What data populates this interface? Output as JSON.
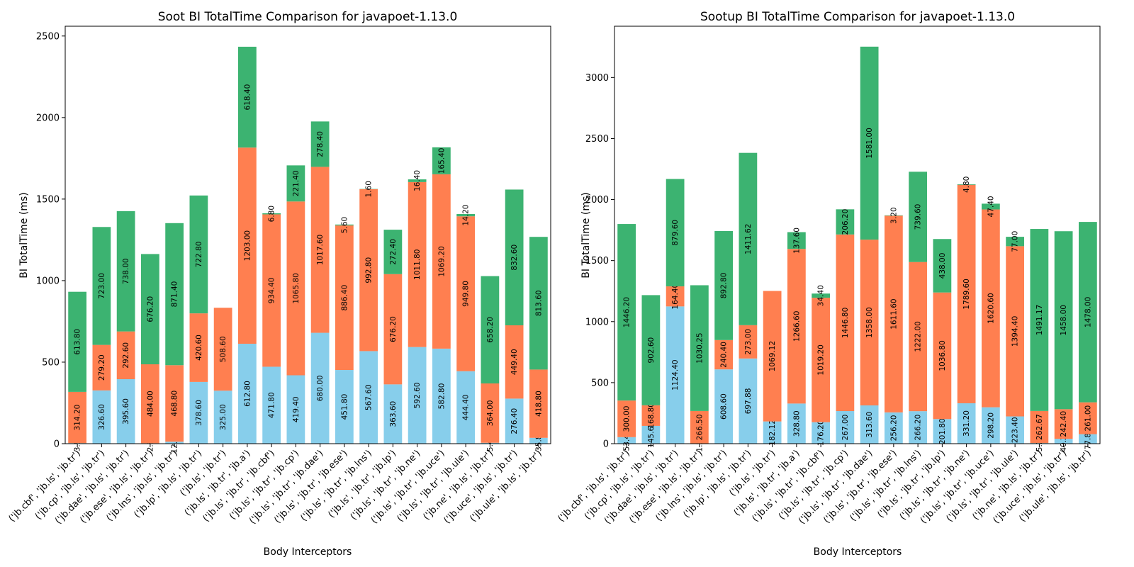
{
  "colors": {
    "series_1": "#87CEEB",
    "series_2": "#FF7F50",
    "series_3": "#3CB371",
    "axis": "#000000",
    "background": "#ffffff"
  },
  "chart_data": [
    {
      "type": "bar",
      "stacked": true,
      "title": "Soot BI TotalTime Comparison for javapoet-1.13.0",
      "xlabel": "Body Interceptors",
      "ylabel": "BI TotalTime (ms)",
      "ylim": [
        0,
        2560
      ],
      "yticks": [
        0,
        500,
        1000,
        1500,
        2000,
        2500
      ],
      "grid": false,
      "categories": [
        "('jb.cbf', 'jb.ls', 'jb.tr')",
        "('jb.cp', 'jb.ls', 'jb.tr')",
        "('jb.dae', 'jb.ls', 'jb.tr')",
        "('jb.ese', 'jb.ls', 'jb.tr')",
        "('jb.lns', 'jb.ls', 'jb.tr')",
        "('jb.lp', 'jb.ls', 'jb.tr')",
        "('jb.ls', 'jb.tr')",
        "('jb.ls', 'jb.tr', 'jb.a')",
        "('jb.ls', 'jb.tr', 'jb.cbf')",
        "('jb.ls', 'jb.tr', 'jb.cp')",
        "('jb.ls', 'jb.tr', 'jb.dae')",
        "('jb.ls', 'jb.tr', 'jb.ese')",
        "('jb.ls', 'jb.tr', 'jb.lns')",
        "('jb.ls', 'jb.tr', 'jb.lp')",
        "('jb.ls', 'jb.tr', 'jb.ne')",
        "('jb.ls', 'jb.tr', 'jb.uce')",
        "('jb.ls', 'jb.tr', 'jb.ule')",
        "('jb.ne', 'jb.ls', 'jb.tr')",
        "('jb.uce', 'jb.ls', 'jb.tr')",
        "('jb.ule', 'jb.ls', 'jb.tr')"
      ],
      "series": [
        {
          "values": [
            3.5,
            326.6,
            395.6,
            2.8,
            12.4,
            378.6,
            325.0,
            612.8,
            471.8,
            419.4,
            680.0,
            451.8,
            567.6,
            363.6,
            592.6,
            582.8,
            444.4,
            5.4,
            276.4,
            35.8
          ]
        },
        {
          "values": [
            314.2,
            279.2,
            292.6,
            484.0,
            468.8,
            420.6,
            508.6,
            1203.0,
            934.4,
            1065.8,
            1017.6,
            886.4,
            992.8,
            676.2,
            1011.8,
            1069.2,
            949.8,
            364.0,
            449.4,
            418.8
          ]
        },
        {
          "values": [
            613.8,
            723.0,
            738.0,
            676.2,
            871.4,
            722.8,
            0,
            618.4,
            6.8,
            221.4,
            278.4,
            5.6,
            1.6,
            272.4,
            16.4,
            165.4,
            14.2,
            658.2,
            832.6,
            813.6
          ]
        }
      ],
      "data_labels": [
        [
          "3.50",
          "326.60",
          "395.60",
          "2.80",
          "12.40",
          "378.60",
          "325.00",
          "612.80",
          "471.80",
          "419.40",
          "680.00",
          "451.80",
          "567.60",
          "363.60",
          "592.60",
          "582.80",
          "444.40",
          "5.40",
          "276.40",
          "35.80"
        ],
        [
          "314.20",
          "279.20",
          "292.60",
          "484.00",
          "468.80",
          "420.60",
          "508.60",
          "1203.00",
          "934.40",
          "1065.80",
          "1017.60",
          "886.40",
          "992.80",
          "676.20",
          "1011.80",
          "1069.20",
          "949.80",
          "364.00",
          "449.40",
          "418.80"
        ],
        [
          "613.80",
          "723.00",
          "738.00",
          "676.20",
          "871.40",
          "722.80",
          "",
          "618.40",
          "6.80",
          "221.40",
          "278.40",
          "5.60",
          "1.60",
          "272.40",
          "16.40",
          "165.40",
          "14.20",
          "658.20",
          "832.60",
          "813.60"
        ]
      ]
    },
    {
      "type": "bar",
      "stacked": true,
      "title": "Sootup BI TotalTime Comparison for javapoet-1.13.0",
      "xlabel": "Body Interceptors",
      "ylabel": "BI TotalTime (ms)",
      "ylim": [
        0,
        3420
      ],
      "yticks": [
        0,
        500,
        1000,
        1500,
        2000,
        2500,
        3000
      ],
      "grid": false,
      "categories": [
        "('jb.cbf', 'jb.ls', 'jb.tr')",
        "('jb.cp', 'jb.ls', 'jb.tr')",
        "('jb.dae', 'jb.ls', 'jb.tr')",
        "('jb.ese', 'jb.ls', 'jb.tr')",
        "('jb.lns', 'jb.ls', 'jb.tr')",
        "('jb.lp', 'jb.ls', 'jb.tr')",
        "('jb.ls', 'jb.tr')",
        "('jb.ls', 'jb.tr', 'jb.a')",
        "('jb.ls', 'jb.tr', 'jb.cbf')",
        "('jb.ls', 'jb.tr', 'jb.cp')",
        "('jb.ls', 'jb.tr', 'jb.dae')",
        "('jb.ls', 'jb.tr', 'jb.ese')",
        "('jb.ls', 'jb.tr', 'jb.lns')",
        "('jb.ls', 'jb.tr', 'jb.lp')",
        "('jb.ls', 'jb.tr', 'jb.ne')",
        "('jb.ls', 'jb.tr', 'jb.uce')",
        "('jb.ls', 'jb.tr', 'jb.ule')",
        "('jb.ne', 'jb.ls', 'jb.tr')",
        "('jb.uce', 'jb.ls', 'jb.tr')",
        "('jb.ule', 'jb.ls', 'jb.tr')"
      ],
      "series": [
        {
          "values": [
            53.4,
            145.6,
            1124.4,
            1.2,
            608.6,
            697.88,
            182.12,
            328.8,
            176.2,
            267.0,
            313.6,
            256.2,
            266.2,
            201.8,
            331.2,
            298.2,
            223.4,
            5.2,
            40.2,
            77.8
          ]
        },
        {
          "values": [
            300.0,
            168.8,
            164.4,
            266.5,
            240.4,
            273.0,
            1069.12,
            1266.6,
            1019.2,
            1446.8,
            1358.0,
            1611.6,
            1222.0,
            1036.8,
            1789.6,
            1620.6,
            1394.4,
            262.67,
            242.4,
            261.0
          ]
        },
        {
          "values": [
            1446.2,
            902.6,
            879.6,
            1030.25,
            892.8,
            1411.62,
            0,
            137.6,
            34.4,
            206.2,
            1581.0,
            3.2,
            739.6,
            438.0,
            4.8,
            47.4,
            77.0,
            1491.17,
            1458.0,
            1478.0
          ]
        }
      ],
      "data_labels": [
        [
          "53.40",
          "145.60",
          "1124.40",
          "1.20",
          "608.60",
          "697.88",
          "182.12",
          "328.80",
          "176.20",
          "267.00",
          "313.60",
          "256.20",
          "266.20",
          "201.80",
          "331.20",
          "298.20",
          "223.40",
          "5.20",
          "40.20",
          "77.80"
        ],
        [
          "300.00",
          "168.80",
          "164.40",
          "266.50",
          "240.40",
          "273.00",
          "1069.12",
          "1266.60",
          "1019.20",
          "1446.80",
          "1358.00",
          "1611.60",
          "1222.00",
          "1036.80",
          "1789.60",
          "1620.60",
          "1394.40",
          "262.67",
          "242.40",
          "261.00"
        ],
        [
          "1446.20",
          "902.60",
          "879.60",
          "1030.25",
          "892.80",
          "1411.62",
          "",
          "137.60",
          "34.40",
          "206.20",
          "1581.00",
          "3.20",
          "739.60",
          "438.00",
          "4.80",
          "47.40",
          "77.00",
          "1491.17",
          "1458.00",
          "1478.00"
        ]
      ]
    }
  ]
}
